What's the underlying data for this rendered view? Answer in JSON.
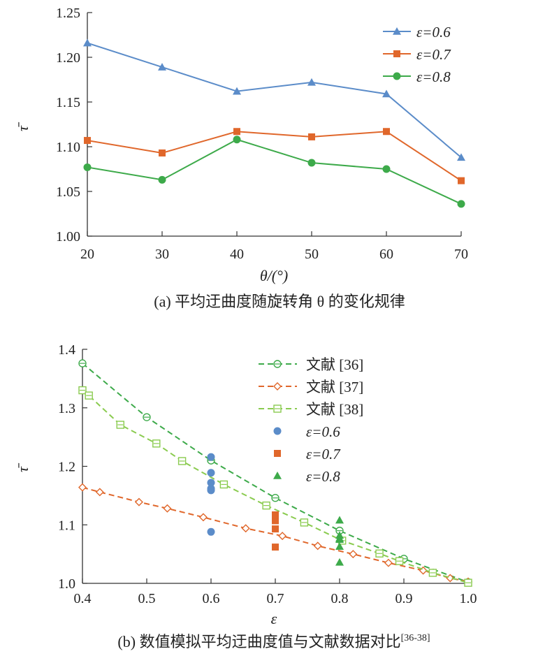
{
  "chart_data": [
    {
      "type": "line",
      "panel": "a",
      "caption": "(a) 平均迂曲度随旋转角 θ 的变化规律",
      "xlabel": "θ/(°)",
      "ylabel": "τ̄",
      "x": [
        20,
        30,
        40,
        50,
        60,
        70
      ],
      "xlim": [
        20,
        70
      ],
      "ylim": [
        1.0,
        1.25
      ],
      "xticks": [
        "20",
        "30",
        "40",
        "50",
        "60",
        "70"
      ],
      "yticks": [
        "1.00",
        "1.05",
        "1.10",
        "1.15",
        "1.20",
        "1.25"
      ],
      "grid": false,
      "legend_position": "top-right",
      "series": [
        {
          "name": "ε=0.6",
          "color": "#5b8cc9",
          "marker": "triangle",
          "values": [
            1.216,
            1.189,
            1.162,
            1.172,
            1.159,
            1.088
          ]
        },
        {
          "name": "ε=0.7",
          "color": "#e0672b",
          "marker": "square",
          "values": [
            1.107,
            1.093,
            1.117,
            1.111,
            1.117,
            1.062
          ]
        },
        {
          "name": "ε=0.8",
          "color": "#3daa4a",
          "marker": "circle",
          "values": [
            1.077,
            1.063,
            1.108,
            1.082,
            1.075,
            1.036
          ]
        }
      ]
    },
    {
      "type": "scatter",
      "panel": "b",
      "caption": "(b) 数值模拟平均迂曲度值与文献数据对比",
      "caption_ref": "[36-38]",
      "xlabel": "ε",
      "ylabel": "τ̄",
      "xlim": [
        0.4,
        1.0
      ],
      "ylim": [
        1.0,
        1.4
      ],
      "xticks": [
        "0.4",
        "0.5",
        "0.6",
        "0.7",
        "0.8",
        "0.9",
        "1.0"
      ],
      "yticks": [
        "1.0",
        "1.1",
        "1.2",
        "1.3",
        "1.4"
      ],
      "grid": false,
      "legend_position": "top-right",
      "series": [
        {
          "name": "文献 [36]",
          "color": "#3daa4a",
          "marker": "circle-open",
          "line": "dashed",
          "x": [
            0.4,
            0.5,
            0.6,
            0.7,
            0.8,
            0.9,
            1.0
          ],
          "values": [
            1.376,
            1.284,
            1.21,
            1.146,
            1.09,
            1.042,
            1.002
          ]
        },
        {
          "name": "文献 [37]",
          "color": "#e0672b",
          "marker": "diamond-open",
          "line": "dashed",
          "x": [
            0.4,
            0.427,
            0.488,
            0.532,
            0.588,
            0.654,
            0.711,
            0.766,
            0.821,
            0.876,
            0.93,
            0.972,
            1.0
          ],
          "values": [
            1.164,
            1.156,
            1.139,
            1.128,
            1.113,
            1.094,
            1.081,
            1.064,
            1.05,
            1.035,
            1.022,
            1.009,
            1.003
          ]
        },
        {
          "name": "文献 [38]",
          "color": "#8acb4f",
          "marker": "square-open",
          "line": "dashed",
          "x": [
            0.4,
            0.41,
            0.459,
            0.515,
            0.555,
            0.62,
            0.686,
            0.745,
            0.804,
            0.862,
            0.893,
            0.945,
            1.0
          ],
          "values": [
            1.33,
            1.321,
            1.271,
            1.239,
            1.209,
            1.169,
            1.133,
            1.104,
            1.073,
            1.051,
            1.038,
            1.018,
            1.001
          ]
        },
        {
          "name": "ε=0.6",
          "color": "#5b8cc9",
          "marker": "circle",
          "x": [
            0.6,
            0.6,
            0.6,
            0.6,
            0.6,
            0.6
          ],
          "values": [
            1.216,
            1.189,
            1.162,
            1.172,
            1.159,
            1.088
          ]
        },
        {
          "name": "ε=0.7",
          "color": "#e0672b",
          "marker": "square",
          "x": [
            0.7,
            0.7,
            0.7,
            0.7,
            0.7,
            0.7
          ],
          "values": [
            1.107,
            1.093,
            1.117,
            1.111,
            1.117,
            1.062
          ]
        },
        {
          "name": "ε=0.8",
          "color": "#3daa4a",
          "marker": "triangle",
          "x": [
            0.8,
            0.8,
            0.8,
            0.8,
            0.8,
            0.8
          ],
          "values": [
            1.077,
            1.063,
            1.108,
            1.082,
            1.075,
            1.036
          ]
        }
      ]
    }
  ]
}
